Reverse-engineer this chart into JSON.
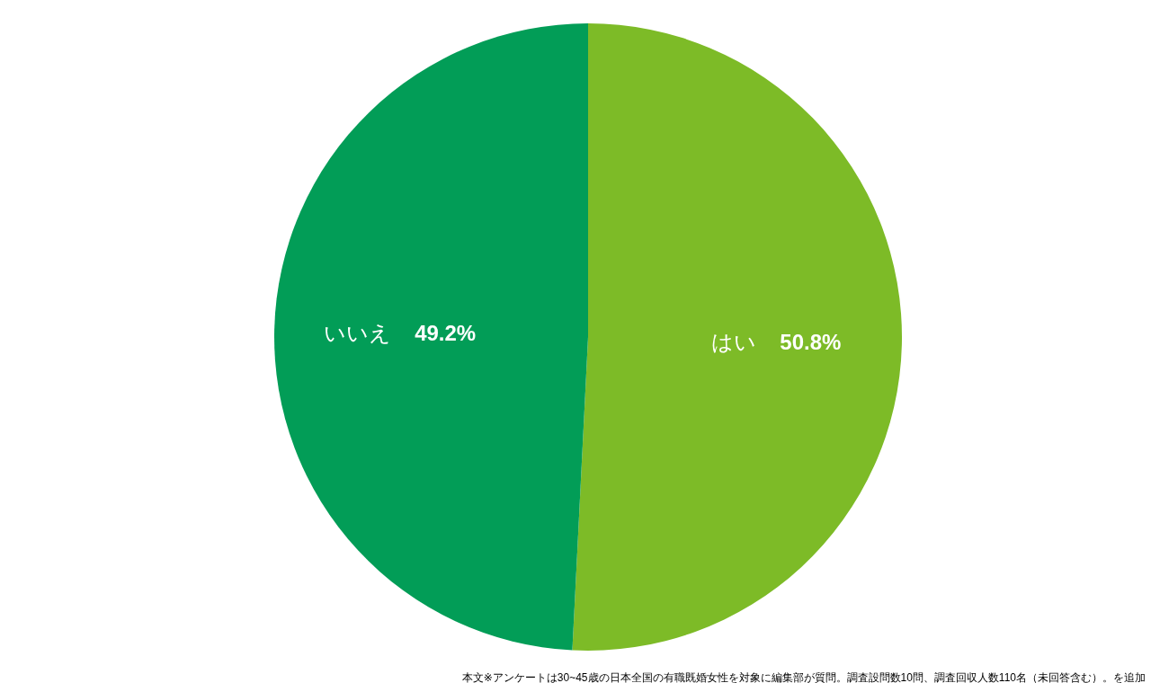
{
  "chart_data": {
    "type": "pie",
    "categories": [
      "はい",
      "いいえ"
    ],
    "values": [
      50.8,
      49.2
    ],
    "colors": [
      "#7dbb27",
      "#029d57"
    ],
    "value_labels": [
      "50.8%",
      "49.2%"
    ],
    "annotations": [
      "本文※アンケートは30~45歳の日本全国の有職既婚女性を対象に編集部が質問。調査設問数10問、調査回収人数110名（未回答含む）。を追加"
    ]
  }
}
